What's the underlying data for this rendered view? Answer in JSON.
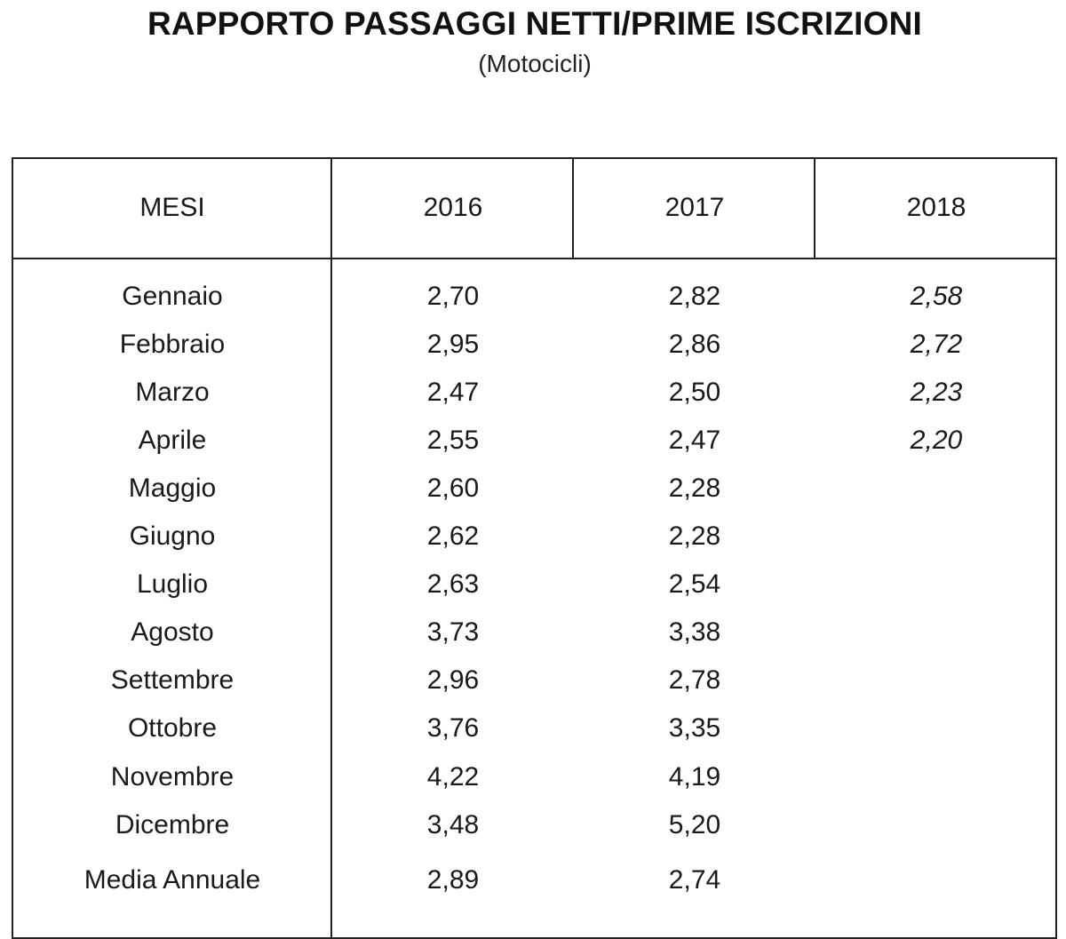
{
  "title": "RAPPORTO PASSAGGI NETTI/PRIME ISCRIZIONI",
  "subtitle": "(Motocicli)",
  "table": {
    "headers": [
      "MESI",
      "2016",
      "2017",
      "2018"
    ],
    "rows": [
      {
        "mese": "Gennaio",
        "y2016": "2,70",
        "y2017": "2,82",
        "y2018": "2,58"
      },
      {
        "mese": "Febbraio",
        "y2016": "2,95",
        "y2017": "2,86",
        "y2018": "2,72"
      },
      {
        "mese": "Marzo",
        "y2016": "2,47",
        "y2017": "2,50",
        "y2018": "2,23"
      },
      {
        "mese": "Aprile",
        "y2016": "2,55",
        "y2017": "2,47",
        "y2018": "2,20"
      },
      {
        "mese": "Maggio",
        "y2016": "2,60",
        "y2017": "2,28",
        "y2018": ""
      },
      {
        "mese": "Giugno",
        "y2016": "2,62",
        "y2017": "2,28",
        "y2018": ""
      },
      {
        "mese": "Luglio",
        "y2016": "2,63",
        "y2017": "2,54",
        "y2018": ""
      },
      {
        "mese": "Agosto",
        "y2016": "3,73",
        "y2017": "3,38",
        "y2018": ""
      },
      {
        "mese": "Settembre",
        "y2016": "2,96",
        "y2017": "2,78",
        "y2018": ""
      },
      {
        "mese": "Ottobre",
        "y2016": "3,76",
        "y2017": "3,35",
        "y2018": ""
      },
      {
        "mese": "Novembre",
        "y2016": "4,22",
        "y2017": "4,19",
        "y2018": ""
      },
      {
        "mese": "Dicembre",
        "y2016": "3,48",
        "y2017": "5,20",
        "y2018": ""
      },
      {
        "mese": "Media Annuale",
        "y2016": "2,89",
        "y2017": "2,74",
        "y2018": ""
      }
    ]
  }
}
